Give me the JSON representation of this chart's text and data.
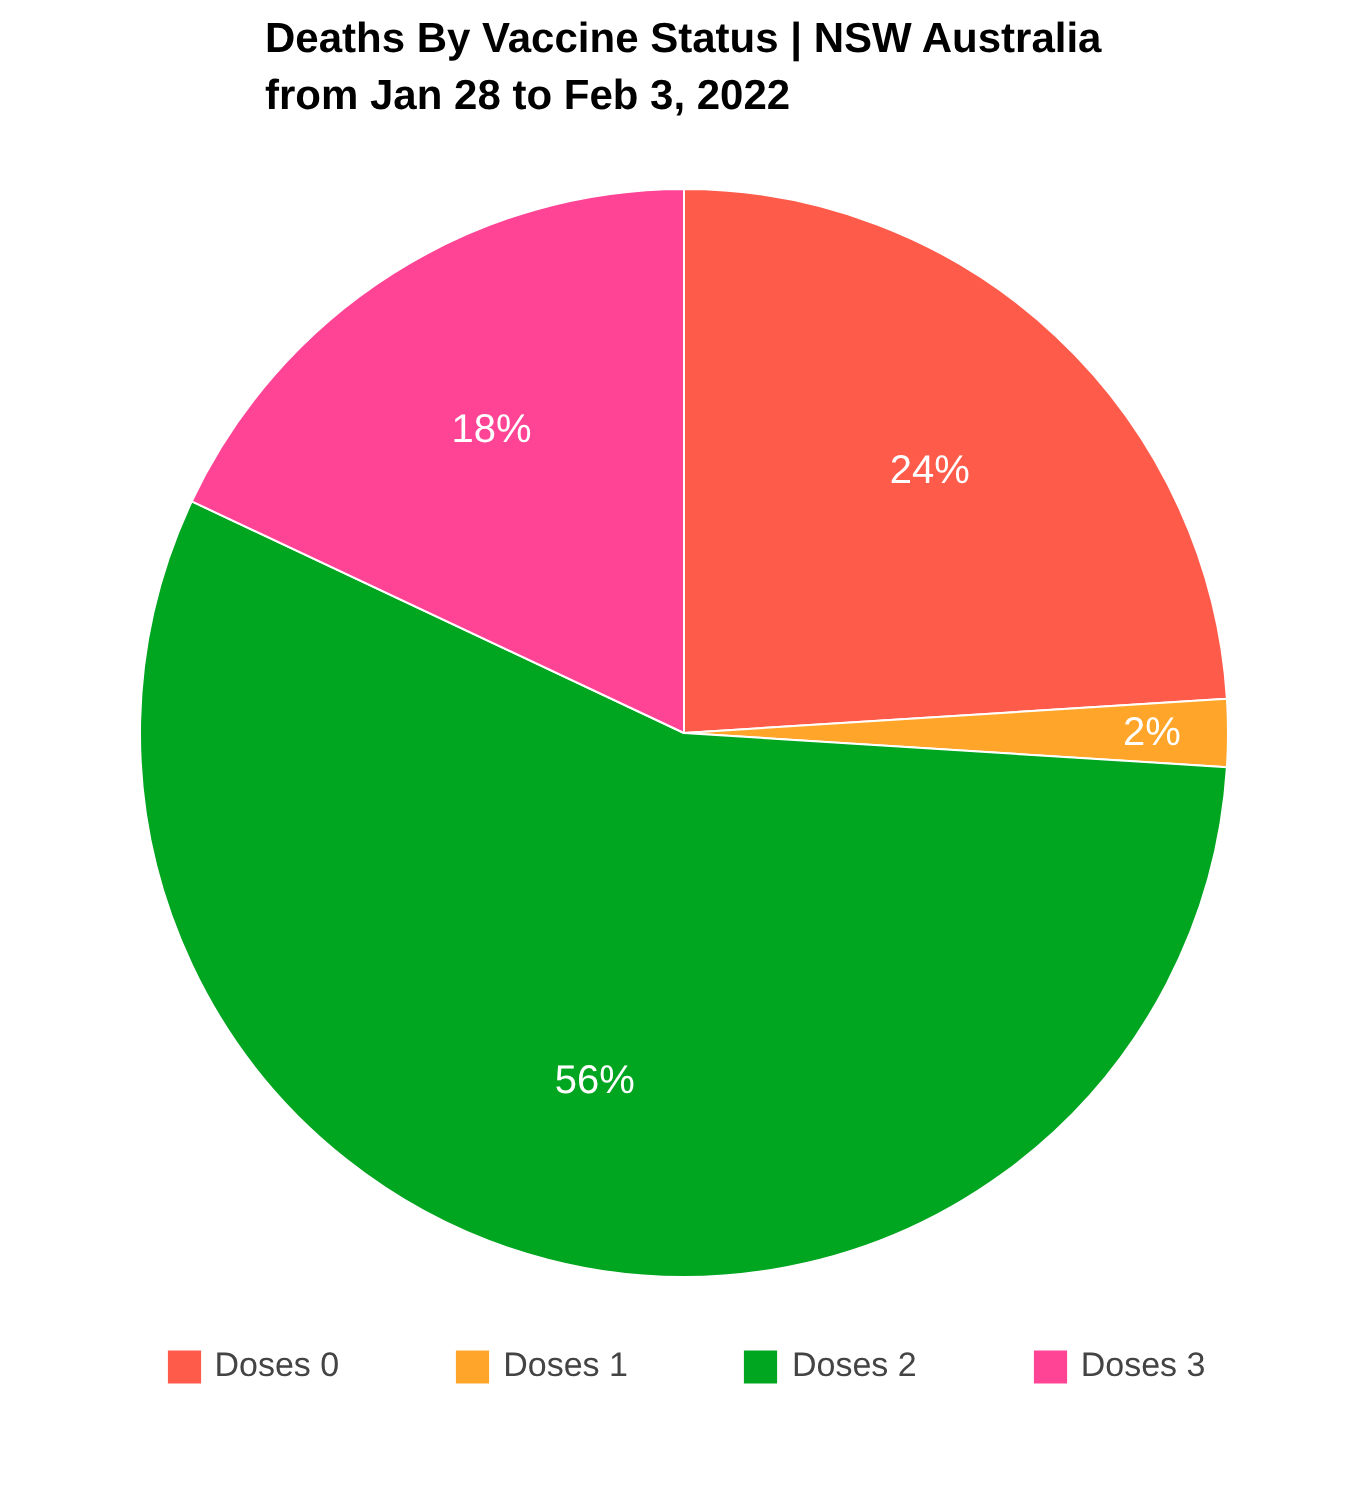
{
  "chart_data": {
    "type": "pie",
    "title": "Deaths By Vaccine Status | NSW Australia\nfrom Jan 28 to Feb 3, 2022",
    "categories": [
      "Doses 0",
      "Doses 1",
      "Doses 2",
      "Doses 3"
    ],
    "values": [
      24,
      2,
      56,
      18
    ],
    "colors": [
      "#ff5b4b",
      "#ffa52a",
      "#00a520",
      "#ff4496"
    ],
    "value_labels": [
      "24%",
      "2%",
      "56%",
      "18%"
    ],
    "legend": "bottom"
  }
}
